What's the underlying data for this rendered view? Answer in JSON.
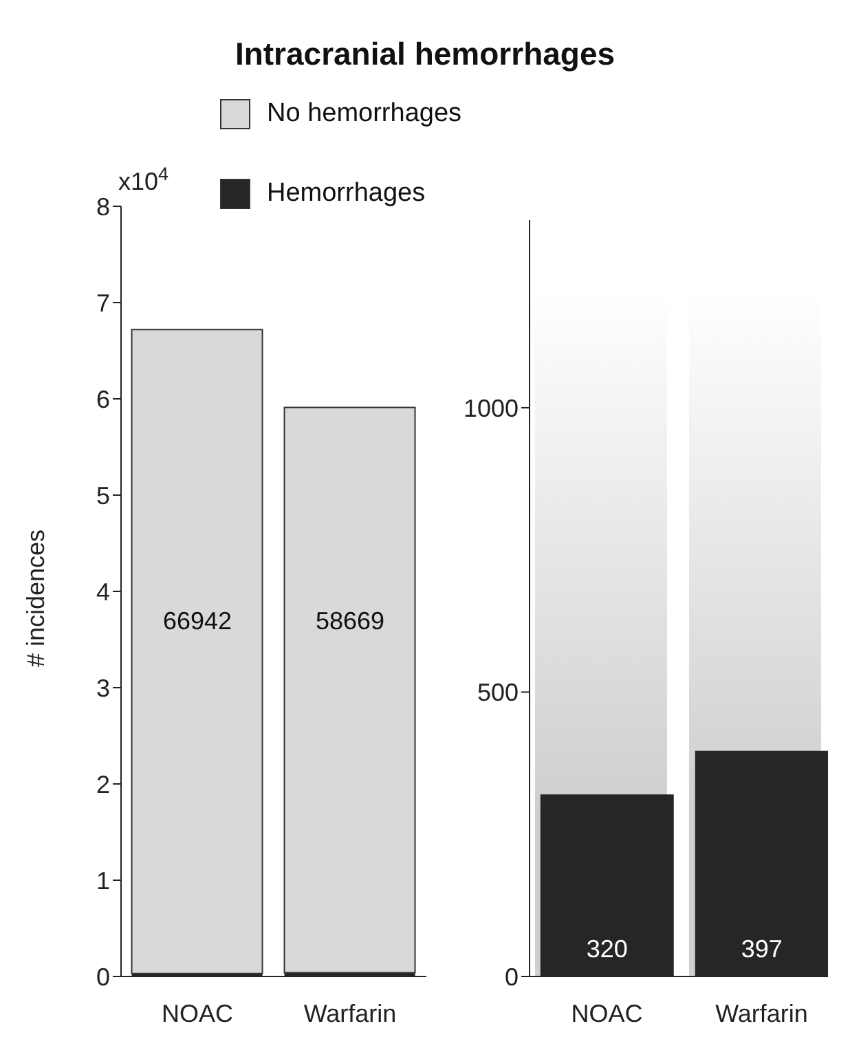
{
  "chart_data": [
    {
      "type": "bar",
      "title": "Intracranial hemorrhages",
      "ylabel": "# incidences",
      "annotations": [
        "x10$^{4}$",
        "66942",
        "58669"
      ],
      "categories": [
        "NOAC",
        "Warfarin"
      ],
      "stacked": true,
      "legend": "top",
      "series": [
        {
          "name": "Hemorrhages",
          "color": "#262626",
          "values": [
            0.03,
            0.04
          ]
        },
        {
          "name": "No hemorrhages",
          "color": "#d9d9d9",
          "values": [
            6.69,
            5.87
          ]
        }
      ],
      "ylim": [
        0,
        8
      ],
      "yticks": [
        0,
        1,
        2,
        3,
        4,
        5,
        6,
        7,
        8
      ]
    },
    {
      "type": "bar",
      "categories": [
        "NOAC",
        "Warfarin"
      ],
      "series": [
        {
          "color": "#262626",
          "values": [
            320,
            397
          ],
          "value_labels": [
            "320",
            "397"
          ]
        }
      ],
      "ylim": [
        0,
        1330
      ],
      "yticks": [
        0,
        500,
        1000
      ]
    }
  ]
}
